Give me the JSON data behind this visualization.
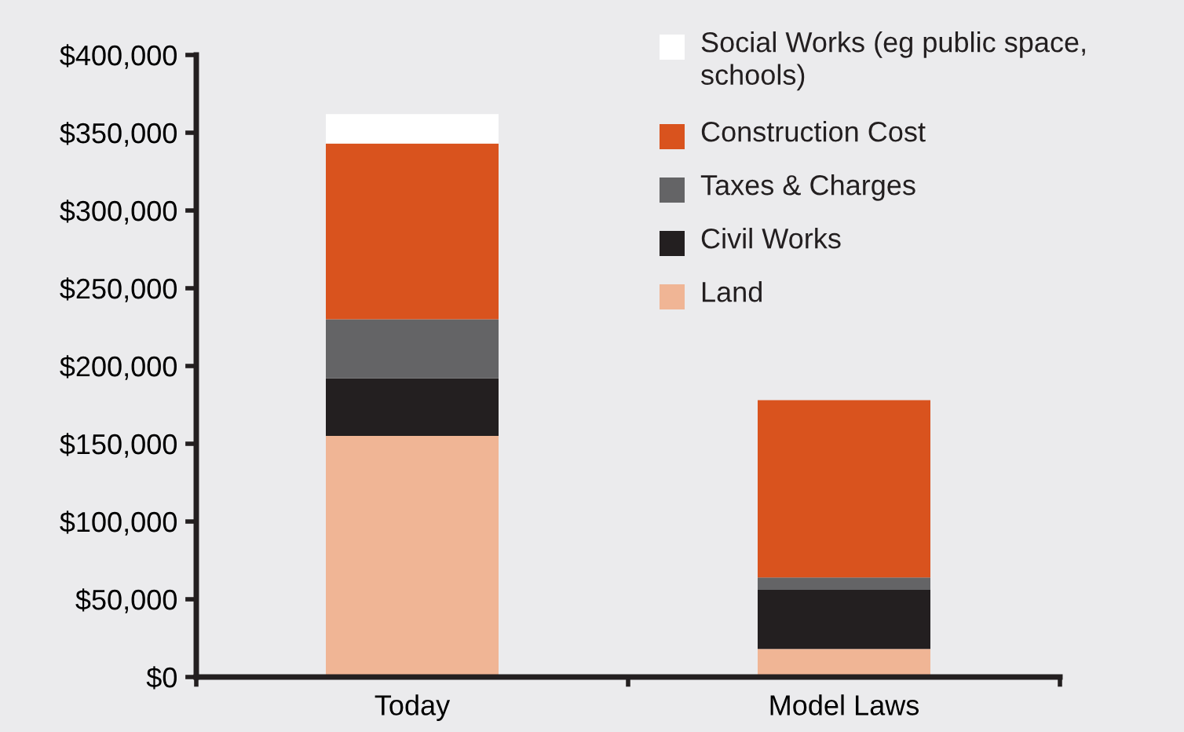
{
  "chart_data": {
    "type": "bar",
    "stacked": true,
    "categories": [
      "Today",
      "Model Laws"
    ],
    "series": [
      {
        "name": "Land",
        "color": "#f0b595",
        "values": [
          155000,
          18000
        ]
      },
      {
        "name": "Civil Works",
        "color": "#231f20",
        "values": [
          37000,
          38000
        ]
      },
      {
        "name": "Taxes & Charges",
        "color": "#646466",
        "values": [
          38000,
          8000
        ]
      },
      {
        "name": "Construction Cost",
        "color": "#d9531e",
        "values": [
          113000,
          114000
        ]
      },
      {
        "name": "Social Works (eg public space, schools)",
        "color": "#ffffff",
        "values": [
          19000,
          null
        ]
      }
    ],
    "ylim": [
      0,
      400000
    ],
    "yticks": [
      {
        "value": 0,
        "label": "$0"
      },
      {
        "value": 50000,
        "label": "$50,000"
      },
      {
        "value": 100000,
        "label": "$100,000"
      },
      {
        "value": 150000,
        "label": "$150,000"
      },
      {
        "value": 200000,
        "label": "$200,000"
      },
      {
        "value": 250000,
        "label": "$250,000"
      },
      {
        "value": 300000,
        "label": "$300,000"
      },
      {
        "value": 350000,
        "label": "$350,000"
      },
      {
        "value": 400000,
        "label": "$400,000"
      }
    ],
    "legend": "top right",
    "grid": false
  }
}
